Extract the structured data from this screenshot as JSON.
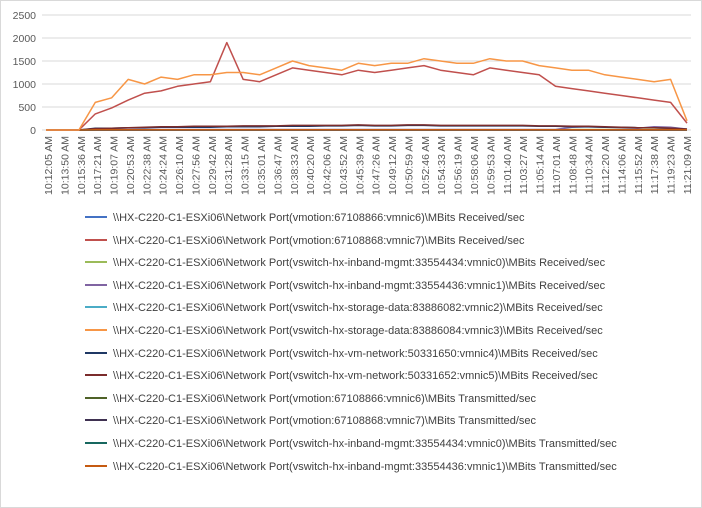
{
  "chart_data": {
    "type": "line",
    "title": "",
    "xlabel": "",
    "ylabel": "",
    "ylim": [
      0,
      2500
    ],
    "yticks": [
      0,
      500,
      1000,
      1500,
      2000,
      2500
    ],
    "grid": true,
    "legend_position": "bottom",
    "x_tick_labels": [
      "10:12:05 AM",
      "10:13:50 AM",
      "10:15:36 AM",
      "10:17:21 AM",
      "10:19:07 AM",
      "10:20:53 AM",
      "10:22:38 AM",
      "10:24:24 AM",
      "10:26:10 AM",
      "10:27:56 AM",
      "10:29:42 AM",
      "10:31:28 AM",
      "10:33:15 AM",
      "10:35:01 AM",
      "10:36:47 AM",
      "10:38:33 AM",
      "10:40:20 AM",
      "10:42:06 AM",
      "10:43:52 AM",
      "10:45:39 AM",
      "10:47:26 AM",
      "10:49:12 AM",
      "10:50:59 AM",
      "10:52:46 AM",
      "10:54:33 AM",
      "10:56:19 AM",
      "10:58:06 AM",
      "10:59:53 AM",
      "11:01:40 AM",
      "11:03:27 AM",
      "11:05:14 AM",
      "11:07:01 AM",
      "11:08:48 AM",
      "11:10:34 AM",
      "11:12:20 AM",
      "11:14:06 AM",
      "11:15:52 AM",
      "11:17:38 AM",
      "11:19:23 AM",
      "11:21:09 AM"
    ],
    "series": [
      {
        "name": "\\\\HX-C220-C1-ESXi06\\Network Port(vmotion:67108866:vmnic6)\\MBits Received/sec",
        "color": "#4472c4",
        "values": [
          0,
          0,
          0,
          0,
          0,
          0,
          0,
          0,
          0,
          0,
          0,
          0,
          0,
          0,
          0,
          0,
          0,
          0,
          0,
          0,
          0,
          0,
          0,
          0,
          0,
          0,
          0,
          0,
          0,
          0,
          0,
          0,
          0,
          0,
          0,
          0,
          0,
          0,
          0,
          0
        ]
      },
      {
        "name": "\\\\HX-C220-C1-ESXi06\\Network Port(vmotion:67108868:vmnic7)\\MBits Received/sec",
        "color": "#c0504d",
        "values": [
          0,
          0,
          0,
          350,
          480,
          650,
          800,
          850,
          950,
          1000,
          1050,
          1900,
          1100,
          1050,
          1200,
          1350,
          1300,
          1250,
          1200,
          1300,
          1250,
          1300,
          1350,
          1400,
          1300,
          1250,
          1200,
          1350,
          1300,
          1250,
          1200,
          950,
          900,
          850,
          800,
          750,
          700,
          650,
          600,
          150
        ]
      },
      {
        "name": "\\\\HX-C220-C1-ESXi06\\Network Port(vswitch-hx-inband-mgmt:33554434:vmnic0)\\MBits Received/sec",
        "color": "#9bbb59",
        "values": [
          0,
          0,
          0,
          5,
          5,
          5,
          5,
          5,
          5,
          5,
          5,
          5,
          5,
          5,
          5,
          5,
          5,
          5,
          5,
          5,
          5,
          5,
          5,
          5,
          5,
          5,
          5,
          5,
          5,
          5,
          5,
          5,
          10,
          10,
          10,
          10,
          10,
          10,
          10,
          5
        ]
      },
      {
        "name": "\\\\HX-C220-C1-ESXi06\\Network Port(vswitch-hx-inband-mgmt:33554436:vmnic1)\\MBits Received/sec",
        "color": "#8064a2",
        "values": [
          0,
          0,
          0,
          10,
          10,
          10,
          10,
          10,
          10,
          10,
          10,
          10,
          10,
          10,
          10,
          10,
          10,
          10,
          10,
          10,
          10,
          10,
          10,
          10,
          10,
          10,
          10,
          10,
          10,
          10,
          10,
          10,
          60,
          70,
          60,
          50,
          40,
          70,
          60,
          20
        ]
      },
      {
        "name": "\\\\HX-C220-C1-ESXi06\\Network Port(vswitch-hx-storage-data:83886082:vmnic2)\\MBits Received/sec",
        "color": "#4bacc6",
        "values": [
          0,
          0,
          0,
          0,
          0,
          0,
          0,
          0,
          0,
          0,
          0,
          0,
          0,
          0,
          0,
          0,
          0,
          0,
          0,
          0,
          0,
          0,
          0,
          0,
          0,
          0,
          0,
          0,
          0,
          0,
          0,
          0,
          0,
          0,
          0,
          0,
          0,
          0,
          0,
          0
        ]
      },
      {
        "name": "\\\\HX-C220-C1-ESXi06\\Network Port(vswitch-hx-storage-data:83886084:vmnic3)\\MBits Received/sec",
        "color": "#f79646",
        "values": [
          0,
          0,
          0,
          600,
          700,
          1100,
          1000,
          1150,
          1100,
          1200,
          1200,
          1250,
          1250,
          1200,
          1350,
          1500,
          1400,
          1350,
          1300,
          1450,
          1400,
          1450,
          1450,
          1550,
          1500,
          1450,
          1450,
          1550,
          1500,
          1500,
          1400,
          1350,
          1300,
          1300,
          1200,
          1150,
          1100,
          1050,
          1100,
          200
        ]
      },
      {
        "name": "\\\\HX-C220-C1-ESXi06\\Network Port(vswitch-hx-vm-network:50331650:vmnic4)\\MBits Received/sec",
        "color": "#1f3864",
        "values": [
          0,
          0,
          0,
          40,
          40,
          50,
          50,
          60,
          60,
          60,
          60,
          70,
          70,
          70,
          80,
          80,
          80,
          90,
          90,
          100,
          90,
          90,
          100,
          100,
          90,
          90,
          90,
          90,
          90,
          90,
          80,
          80,
          70,
          70,
          60,
          60,
          50,
          50,
          40,
          20
        ]
      },
      {
        "name": "\\\\HX-C220-C1-ESXi06\\Network Port(vswitch-hx-vm-network:50331652:vmnic5)\\MBits Received/sec",
        "color": "#7b2c2c",
        "values": [
          0,
          0,
          0,
          30,
          40,
          50,
          60,
          70,
          70,
          80,
          80,
          80,
          90,
          90,
          90,
          100,
          100,
          100,
          100,
          110,
          100,
          100,
          110,
          110,
          100,
          100,
          100,
          100,
          100,
          100,
          90,
          90,
          80,
          80,
          70,
          60,
          50,
          50,
          40,
          20
        ]
      },
      {
        "name": "\\\\HX-C220-C1-ESXi06\\Network Port(vmotion:67108866:vmnic6)\\MBits Transmitted/sec",
        "color": "#4f6228",
        "values": [
          0,
          0,
          0,
          0,
          0,
          0,
          0,
          0,
          0,
          0,
          0,
          0,
          0,
          0,
          0,
          0,
          0,
          0,
          0,
          0,
          0,
          0,
          0,
          0,
          0,
          0,
          0,
          0,
          0,
          0,
          0,
          0,
          0,
          0,
          0,
          0,
          0,
          0,
          0,
          0
        ]
      },
      {
        "name": "\\\\HX-C220-C1-ESXi06\\Network Port(vmotion:67108868:vmnic7)\\MBits Transmitted/sec",
        "color": "#3f3151",
        "values": [
          0,
          0,
          0,
          0,
          0,
          0,
          0,
          0,
          0,
          0,
          0,
          0,
          0,
          0,
          0,
          0,
          0,
          0,
          0,
          0,
          0,
          0,
          0,
          0,
          0,
          0,
          0,
          0,
          0,
          0,
          0,
          0,
          0,
          0,
          0,
          0,
          0,
          0,
          0,
          0
        ]
      },
      {
        "name": "\\\\HX-C220-C1-ESXi06\\Network Port(vswitch-hx-inband-mgmt:33554434:vmnic0)\\MBits Transmitted/sec",
        "color": "#17675f",
        "values": [
          0,
          0,
          0,
          5,
          5,
          5,
          5,
          5,
          5,
          5,
          5,
          5,
          5,
          5,
          5,
          5,
          5,
          5,
          5,
          5,
          5,
          5,
          5,
          5,
          5,
          5,
          5,
          5,
          5,
          5,
          5,
          5,
          5,
          5,
          5,
          5,
          5,
          5,
          5,
          5
        ]
      },
      {
        "name": "\\\\HX-C220-C1-ESXi06\\Network Port(vswitch-hx-inband-mgmt:33554436:vmnic1)\\MBits Transmitted/sec",
        "color": "#c55a11",
        "values": [
          0,
          0,
          0,
          5,
          5,
          5,
          5,
          5,
          5,
          5,
          5,
          5,
          5,
          5,
          5,
          5,
          5,
          5,
          5,
          5,
          5,
          5,
          5,
          5,
          5,
          5,
          5,
          5,
          5,
          5,
          5,
          5,
          5,
          5,
          5,
          5,
          5,
          5,
          5,
          5
        ]
      }
    ]
  }
}
